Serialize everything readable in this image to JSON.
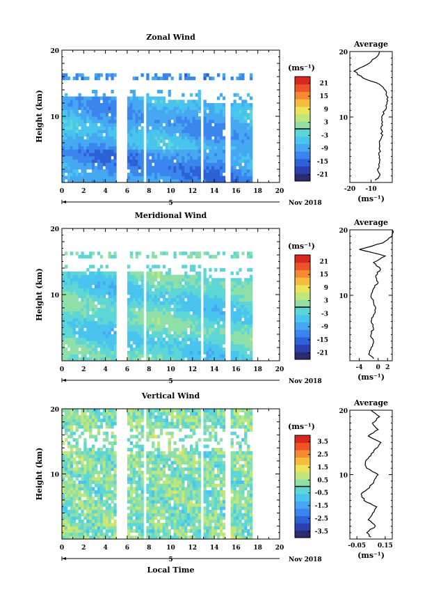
{
  "chart_data": [
    {
      "type": "heatmap",
      "title": "Zonal Wind",
      "ylabel": "Height (km)",
      "xlim": [
        0,
        20
      ],
      "ylim": [
        0,
        20
      ],
      "x_ticks": [
        "0",
        "2",
        "4",
        "6",
        "8",
        "10",
        "12",
        "14",
        "16",
        "18",
        "20"
      ],
      "y_ticks": [
        "10",
        "20"
      ],
      "date_marker": "5",
      "date_label": "Nov 2018",
      "colorbar": {
        "unit": "(ms⁻¹)",
        "ticks": [
          "21",
          "15",
          "9",
          "3",
          "-3",
          "-9",
          "-15",
          "-21"
        ],
        "range": [
          -24,
          24
        ]
      },
      "data_gaps_hours": [
        [
          5.0,
          6.0
        ],
        [
          7.4,
          7.8
        ],
        [
          12.7,
          13.0
        ],
        [
          15.1,
          15.4
        ],
        [
          17.6,
          20.0
        ]
      ],
      "data_top_km": 12.5,
      "typical_value_ms": -8,
      "average_profile": {
        "title": "Average",
        "xlabel": "(ms⁻¹)",
        "x_ticks": [
          "-20",
          "-10"
        ],
        "xlim": [
          -20,
          0
        ],
        "y_ticks": [
          "10",
          "20"
        ],
        "heights_km": [
          0.3,
          1,
          2,
          3,
          4,
          5,
          6,
          7,
          8,
          9,
          10,
          11,
          12,
          13,
          14,
          15,
          16,
          17,
          18,
          19,
          20
        ],
        "values": [
          -8,
          -6,
          -7,
          -6,
          -6,
          -6,
          -6,
          -5,
          -5,
          -5,
          -5,
          -3.5,
          -2.5,
          -2,
          -3,
          -6,
          -14,
          -18,
          -12,
          -8,
          -6
        ]
      }
    },
    {
      "type": "heatmap",
      "title": "Meridional Wind",
      "ylabel": "Height (km)",
      "xlim": [
        0,
        20
      ],
      "ylim": [
        0,
        20
      ],
      "x_ticks": [
        "0",
        "2",
        "4",
        "6",
        "8",
        "10",
        "12",
        "14",
        "16",
        "18",
        "20"
      ],
      "y_ticks": [
        "10",
        "20"
      ],
      "date_marker": "5",
      "date_label": "Nov 2018",
      "colorbar": {
        "unit": "(ms⁻¹)",
        "ticks": [
          "21",
          "15",
          "9",
          "3",
          "-3",
          "-9",
          "-15",
          "-21"
        ],
        "range": [
          -24,
          24
        ]
      },
      "data_gaps_hours": [
        [
          5.0,
          6.0
        ],
        [
          7.4,
          7.8
        ],
        [
          12.7,
          13.0
        ],
        [
          15.1,
          15.4
        ],
        [
          17.6,
          20.0
        ]
      ],
      "data_top_km": 13.0,
      "typical_value_ms": -2,
      "average_profile": {
        "title": "Average",
        "xlabel": "(ms⁻¹)",
        "x_ticks": [
          "-4",
          "0",
          "2"
        ],
        "xlim": [
          -6,
          3
        ],
        "y_ticks": [
          "10",
          "20"
        ],
        "heights_km": [
          0.3,
          1,
          2,
          3,
          4,
          5,
          6,
          7,
          8,
          9,
          10,
          11,
          12,
          13,
          14,
          15,
          16,
          17,
          18,
          19,
          20
        ],
        "values": [
          -1,
          -2,
          -1.5,
          -1,
          -1.5,
          -1,
          -1.5,
          -1,
          -0.5,
          -1,
          -1.5,
          -1,
          0,
          -0.5,
          0.5,
          -1,
          1.5,
          -4,
          1,
          3,
          3
        ]
      }
    },
    {
      "type": "heatmap",
      "title": "Vertical Wind",
      "ylabel": "Height (km)",
      "xlabel": "Local Time",
      "xlim": [
        0,
        20
      ],
      "ylim": [
        0,
        20
      ],
      "x_ticks": [
        "0",
        "2",
        "4",
        "6",
        "8",
        "10",
        "12",
        "14",
        "16",
        "18",
        "20"
      ],
      "y_ticks": [
        "10",
        "20"
      ],
      "date_marker": "5",
      "date_label": "Nov 2018",
      "colorbar": {
        "unit": "(ms⁻¹)",
        "ticks": [
          "3.5",
          "2.5",
          "1.5",
          "0.5",
          "-0.5",
          "-1.5",
          "-2.5",
          "-3.5"
        ],
        "range": [
          -4,
          4
        ]
      },
      "data_gaps_hours": [
        [
          5.0,
          6.0
        ],
        [
          7.4,
          7.8
        ],
        [
          12.7,
          13.0
        ],
        [
          15.1,
          15.4
        ],
        [
          17.6,
          20.0
        ]
      ],
      "typical_value_ms": 0.2,
      "average_profile": {
        "title": "Average",
        "xlabel": "(ms⁻¹)",
        "x_ticks": [
          "-0.05",
          "0.15"
        ],
        "xlim": [
          -0.1,
          0.2
        ],
        "y_ticks": [
          "10",
          "20"
        ],
        "heights_km": [
          0.3,
          1,
          2,
          3,
          4,
          5,
          6,
          7,
          8,
          9,
          10,
          11,
          12,
          13,
          14,
          15,
          16,
          17,
          18,
          19,
          20
        ],
        "values": [
          0.05,
          0.02,
          0.08,
          0.03,
          0.06,
          0.09,
          0.0,
          -0.02,
          0.04,
          0.07,
          0.1,
          0.02,
          0.01,
          0.05,
          0.08,
          0.12,
          0.03,
          0.1,
          0.06,
          0.11,
          0.05
        ]
      }
    }
  ]
}
